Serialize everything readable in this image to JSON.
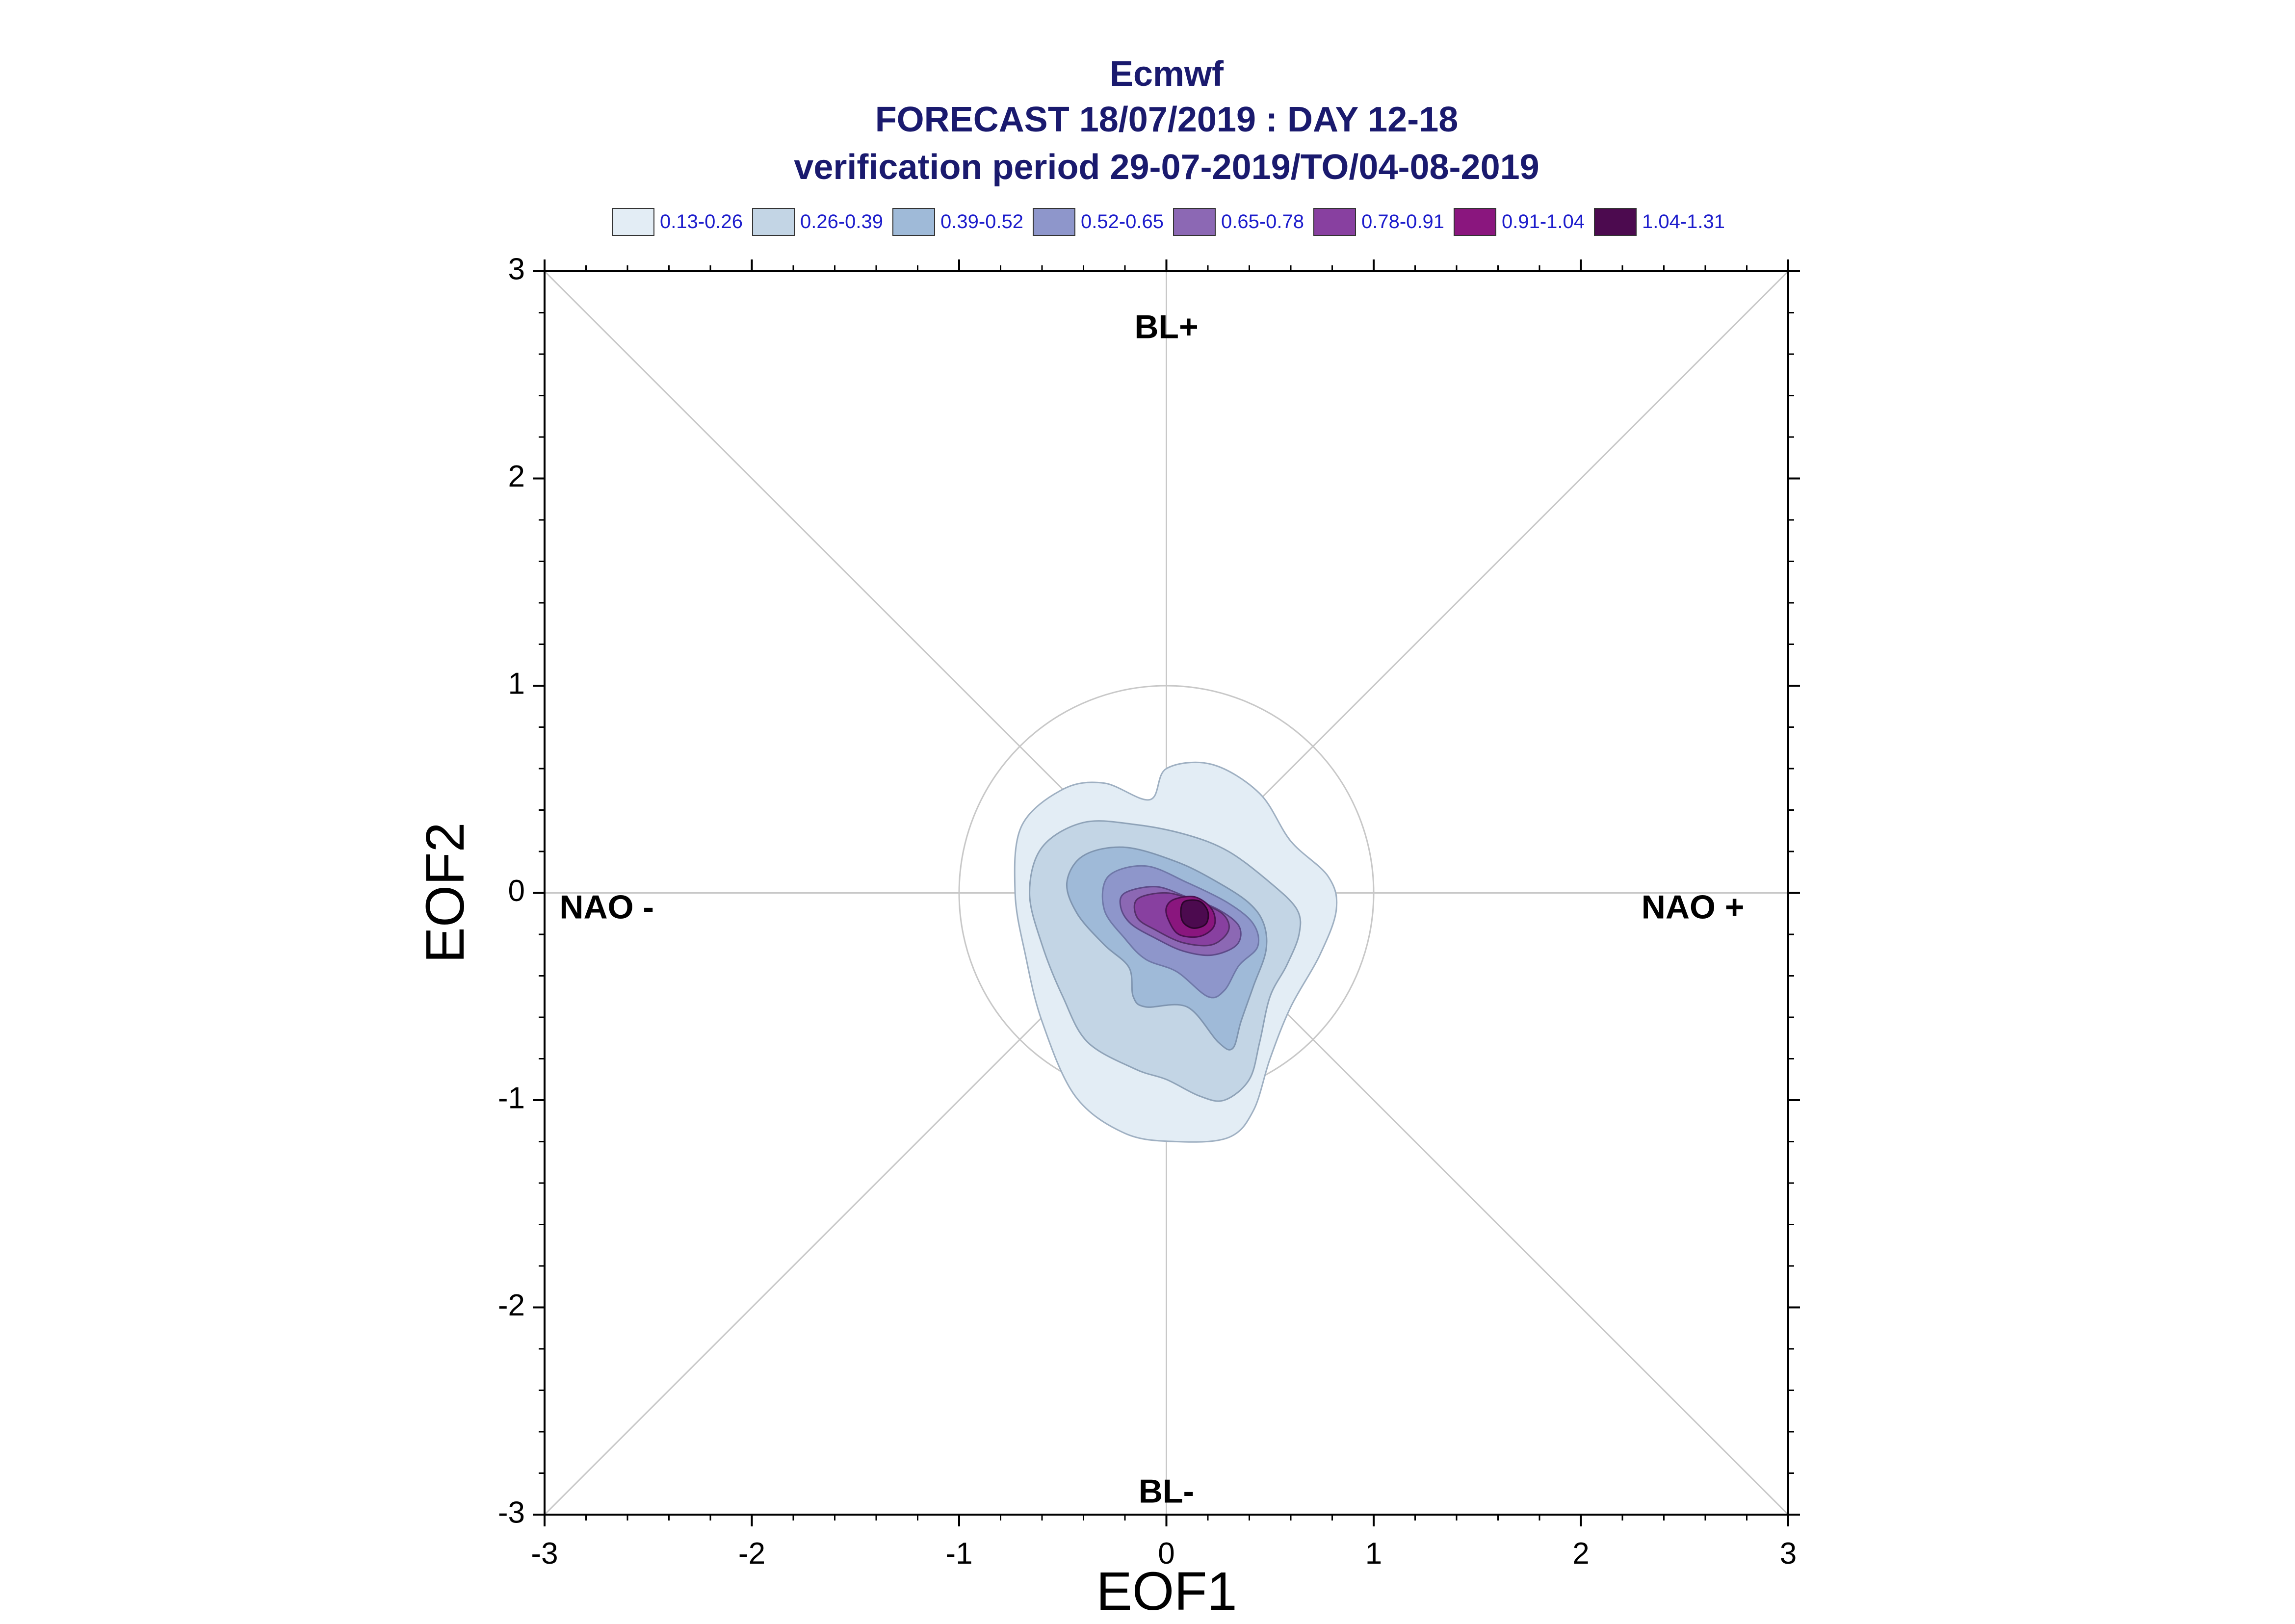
{
  "chart_data": {
    "type": "contour",
    "title": "Ecmwf",
    "subtitle": "FORECAST 18/07/2019 : DAY 12-18",
    "subtitle2": "verification period 29-07-2019/TO/04-08-2019",
    "xlabel": "EOF1",
    "ylabel": "EOF2",
    "xlim": [
      -3,
      3
    ],
    "ylim": [
      -3,
      3
    ],
    "x_ticks": [
      -3,
      -2,
      -1,
      0,
      1,
      2,
      3
    ],
    "y_ticks": [
      -3,
      -2,
      -1,
      0,
      1,
      2,
      3
    ],
    "x_tick_labels": [
      "-3",
      "-2",
      "-1",
      "0",
      "1",
      "2",
      "3"
    ],
    "y_tick_labels": [
      "-3",
      "-2",
      "-1",
      "0",
      "1",
      "2",
      "3"
    ],
    "legend_position": "top",
    "grid": false,
    "reference_circle_radius": 1,
    "regime_labels": [
      {
        "text": "BL+",
        "x": 0,
        "y": 2.72
      },
      {
        "text": "BL-",
        "x": 0,
        "y": -2.9
      },
      {
        "text": "NAO -",
        "x": -2.7,
        "y": -0.08
      },
      {
        "text": "NAO +",
        "x": 2.54,
        "y": -0.08
      }
    ],
    "levels": [
      {
        "label": "0.13-0.26",
        "color": "#e3edf5",
        "stroke": "#9fb0c2",
        "contour": [
          [
            -0.08,
            0.45
          ],
          [
            0.0,
            0.6
          ],
          [
            0.22,
            0.62
          ],
          [
            0.45,
            0.48
          ],
          [
            0.6,
            0.25
          ],
          [
            0.78,
            0.08
          ],
          [
            0.82,
            -0.08
          ],
          [
            0.74,
            -0.3
          ],
          [
            0.6,
            -0.55
          ],
          [
            0.5,
            -0.8
          ],
          [
            0.42,
            -1.05
          ],
          [
            0.3,
            -1.18
          ],
          [
            0.05,
            -1.2
          ],
          [
            -0.2,
            -1.16
          ],
          [
            -0.44,
            -0.98
          ],
          [
            -0.6,
            -0.62
          ],
          [
            -0.68,
            -0.3
          ],
          [
            -0.73,
            0.0
          ],
          [
            -0.7,
            0.32
          ],
          [
            -0.5,
            0.5
          ],
          [
            -0.3,
            0.53
          ]
        ]
      },
      {
        "label": "0.26-0.39",
        "color": "#c3d5e5",
        "stroke": "#8fa3b8",
        "contour": [
          [
            -0.6,
            0.22
          ],
          [
            -0.4,
            0.34
          ],
          [
            -0.15,
            0.33
          ],
          [
            0.1,
            0.28
          ],
          [
            0.3,
            0.2
          ],
          [
            0.5,
            0.05
          ],
          [
            0.63,
            -0.08
          ],
          [
            0.64,
            -0.2
          ],
          [
            0.58,
            -0.35
          ],
          [
            0.5,
            -0.5
          ],
          [
            0.45,
            -0.72
          ],
          [
            0.4,
            -0.9
          ],
          [
            0.28,
            -1.0
          ],
          [
            0.16,
            -0.98
          ],
          [
            0.0,
            -0.9
          ],
          [
            -0.15,
            -0.85
          ],
          [
            -0.38,
            -0.72
          ],
          [
            -0.5,
            -0.5
          ],
          [
            -0.6,
            -0.25
          ],
          [
            -0.66,
            0.0
          ]
        ]
      },
      {
        "label": "0.39-0.52",
        "color": "#9fbad8",
        "stroke": "#7f95b0",
        "contour": [
          [
            -0.4,
            0.18
          ],
          [
            -0.2,
            0.22
          ],
          [
            0.05,
            0.15
          ],
          [
            0.25,
            0.05
          ],
          [
            0.4,
            -0.05
          ],
          [
            0.47,
            -0.15
          ],
          [
            0.48,
            -0.28
          ],
          [
            0.42,
            -0.45
          ],
          [
            0.36,
            -0.62
          ],
          [
            0.32,
            -0.75
          ],
          [
            0.25,
            -0.72
          ],
          [
            0.1,
            -0.55
          ],
          [
            -0.1,
            -0.55
          ],
          [
            -0.16,
            -0.5
          ],
          [
            -0.18,
            -0.36
          ],
          [
            -0.3,
            -0.25
          ],
          [
            -0.43,
            -0.1
          ],
          [
            -0.48,
            0.05
          ]
        ]
      },
      {
        "label": "0.52-0.65",
        "color": "#8e96cb",
        "stroke": "#6f78a8",
        "contour": [
          [
            -0.28,
            0.08
          ],
          [
            -0.1,
            0.13
          ],
          [
            0.1,
            0.05
          ],
          [
            0.3,
            -0.05
          ],
          [
            0.42,
            -0.15
          ],
          [
            0.44,
            -0.26
          ],
          [
            0.35,
            -0.35
          ],
          [
            0.28,
            -0.47
          ],
          [
            0.2,
            -0.5
          ],
          [
            0.05,
            -0.38
          ],
          [
            -0.1,
            -0.32
          ],
          [
            -0.2,
            -0.22
          ],
          [
            -0.3,
            -0.08
          ]
        ]
      },
      {
        "label": "0.65-0.78",
        "color": "#8c68b4",
        "stroke": "#5d4a88",
        "contour": [
          [
            -0.2,
            0.0
          ],
          [
            -0.05,
            0.03
          ],
          [
            0.1,
            -0.02
          ],
          [
            0.25,
            -0.08
          ],
          [
            0.35,
            -0.16
          ],
          [
            0.34,
            -0.25
          ],
          [
            0.22,
            -0.3
          ],
          [
            0.08,
            -0.28
          ],
          [
            -0.05,
            -0.22
          ],
          [
            -0.17,
            -0.15
          ],
          [
            -0.22,
            -0.07
          ]
        ]
      },
      {
        "label": "0.78-0.91",
        "color": "#8840a0",
        "stroke": "#55306a",
        "contour": [
          [
            -0.14,
            -0.03
          ],
          [
            0.0,
            0.0
          ],
          [
            0.14,
            -0.04
          ],
          [
            0.27,
            -0.1
          ],
          [
            0.3,
            -0.18
          ],
          [
            0.22,
            -0.25
          ],
          [
            0.08,
            -0.24
          ],
          [
            -0.05,
            -0.18
          ],
          [
            -0.14,
            -0.12
          ]
        ]
      },
      {
        "label": "0.91-1.04",
        "color": "#8a167e",
        "stroke": "#4a1050",
        "contour": [
          [
            0.04,
            -0.03
          ],
          [
            0.14,
            -0.02
          ],
          [
            0.22,
            -0.08
          ],
          [
            0.23,
            -0.16
          ],
          [
            0.16,
            -0.21
          ],
          [
            0.06,
            -0.2
          ],
          [
            0.01,
            -0.13
          ],
          [
            0.0,
            -0.07
          ]
        ]
      },
      {
        "label": "1.04-1.31",
        "color": "#4c0a4f",
        "stroke": "#2a052a",
        "contour": [
          [
            0.09,
            -0.04
          ],
          [
            0.16,
            -0.04
          ],
          [
            0.2,
            -0.09
          ],
          [
            0.19,
            -0.15
          ],
          [
            0.13,
            -0.17
          ],
          [
            0.08,
            -0.14
          ],
          [
            0.07,
            -0.08
          ]
        ]
      }
    ]
  }
}
